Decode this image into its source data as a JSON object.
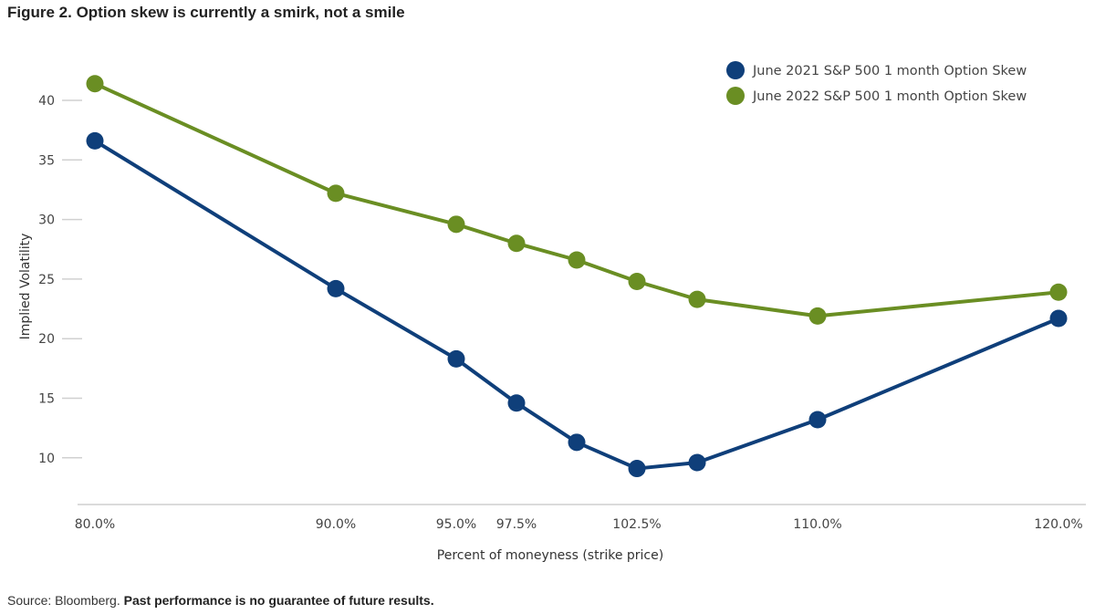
{
  "chart_data": {
    "type": "line",
    "title": "Figure 2. Option skew is currently a smirk, not a smile",
    "xlabel": "Percent of moneyness (strike price)",
    "ylabel": "Implied Volatility",
    "x": [
      80,
      90,
      95,
      97.5,
      100,
      102.5,
      105,
      110,
      120
    ],
    "x_tick_values": [
      80,
      90,
      95,
      97.5,
      102.5,
      110,
      120
    ],
    "x_tick_labels": [
      "80.0%",
      "90.0%",
      "95.0%",
      "97.5%",
      "102.5%",
      "110.0%",
      "120.0%"
    ],
    "y_ticks": [
      "10",
      "15",
      "20",
      "25",
      "30",
      "35",
      "40"
    ],
    "xlim": [
      80,
      120
    ],
    "ylim": [
      6,
      44
    ],
    "grid": false,
    "legend_position": "top-right",
    "series": [
      {
        "name": "June 2021 S&P 500 1 month Option Skew",
        "color": "#0f3f7a",
        "values": [
          36.6,
          24.2,
          18.3,
          14.6,
          11.3,
          9.1,
          9.6,
          13.2,
          21.7
        ]
      },
      {
        "name": "June 2022 S&P 500 1 month Option Skew",
        "color": "#6a8e23",
        "values": [
          41.4,
          32.2,
          29.6,
          28.0,
          26.6,
          24.8,
          23.3,
          21.9,
          23.9
        ]
      }
    ]
  },
  "footer": {
    "source": "Source: Bloomberg.",
    "disclaimer": "Past performance is no guarantee of future results."
  }
}
